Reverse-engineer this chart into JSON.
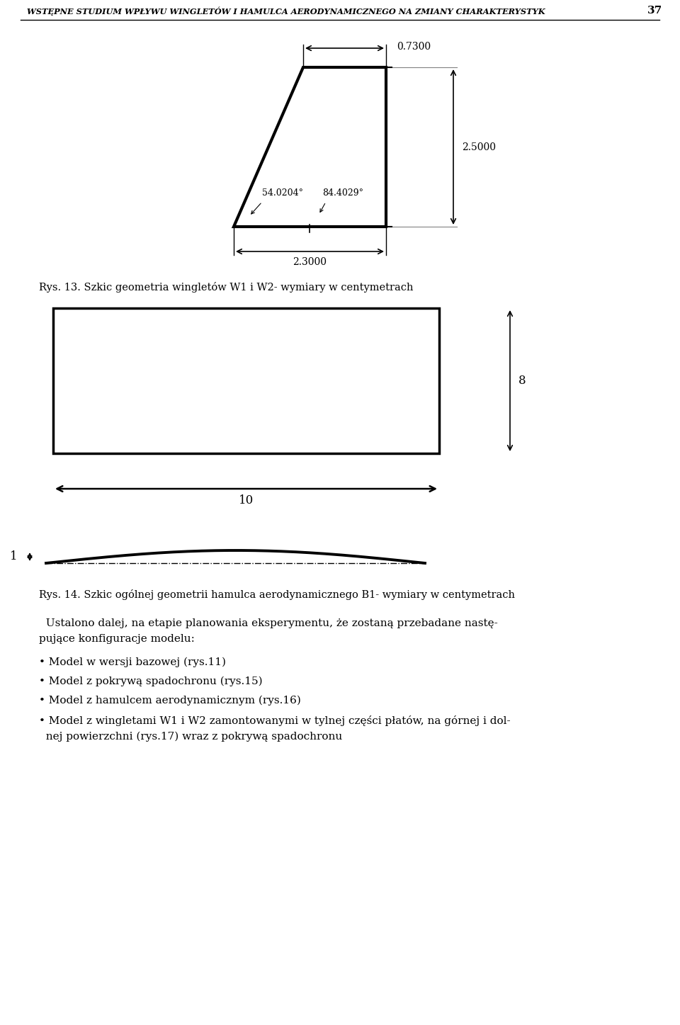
{
  "header_text": "WSTĘPNE STUDIUM WPŁYWU WINGLETÓW I HAMULCA AERODYNAMICZNEGO NA ZMIANY CHARAKTERYSTYK",
  "header_number": "37",
  "dim_0730_text": "0.7300",
  "dim_2500_text": "2.5000",
  "dim_2300_text": "2.3000",
  "angle_54_text": "54.0204°",
  "angle_84_text": "84.4029°",
  "caption13": "Rys. 13. Szkic geometria wingletów W1 i W2- wymiary w centymetrach",
  "dim_8_text": "8",
  "dim_10_text": "10",
  "caption14": "Rys. 14. Szkic ogólnej geometrii hamulca aerodynamicznego B1- wymiary w centymetrach",
  "bullet1": "• Model w wersji bazowej (rys.11)",
  "bullet2": "• Model z pokrywą spadochronu (rys.15)",
  "bullet3": "• Model z hamulcem aerodynamicznym (rys.16)",
  "bullet4a": "• Model z wingletami W1 i W2 zamontowanymi w tylnej części płatów, na górnej i dol-",
  "bullet4b": "  nej powierzchni (rys.17) wraz z pokrywą spadochronu",
  "para_intro": "  Ustalono dalej, na etapie planowania eksperymentu, że zostaną przebadane nastę-",
  "para_intro2": "pujące konfiguracje modelu:",
  "bg_color": "#ffffff",
  "line_color": "#000000"
}
